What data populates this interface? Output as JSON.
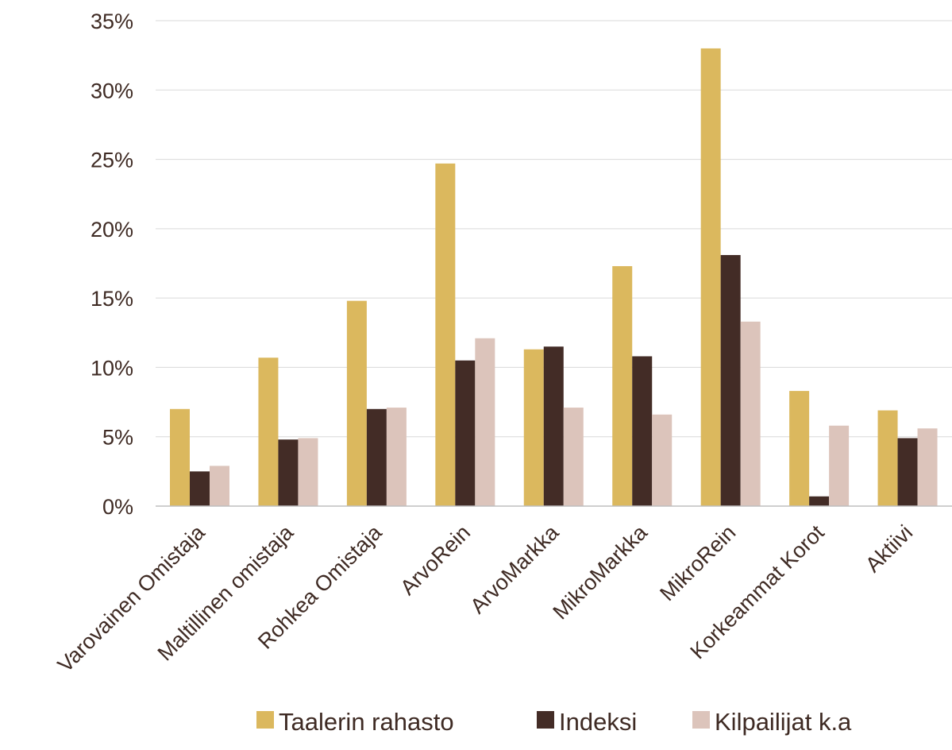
{
  "chart_data": {
    "type": "bar",
    "categories": [
      "Varovainen Omistaja",
      "Maltillinen omistaja",
      "Rohkea Omistaja",
      "ArvoRein",
      "ArvoMarkka",
      "MikroMarkka",
      "MikroRein",
      "Korkeammat Korot",
      "Aktiivi"
    ],
    "series": [
      {
        "name": "Taalerin rahasto",
        "color": "#dbb85e",
        "values": [
          7.0,
          10.7,
          14.8,
          24.7,
          11.3,
          17.3,
          33.0,
          8.3,
          6.9
        ]
      },
      {
        "name": "Indeksi",
        "color": "#432c26",
        "values": [
          2.5,
          4.8,
          7.0,
          10.5,
          11.5,
          10.8,
          18.1,
          0.7,
          4.9
        ]
      },
      {
        "name": "Kilpailijat k.a",
        "color": "#dcc4bb",
        "values": [
          2.9,
          4.9,
          7.1,
          12.1,
          7.1,
          6.6,
          13.3,
          5.8,
          5.6
        ]
      }
    ],
    "yticks": [
      "0%",
      "5%",
      "10%",
      "15%",
      "20%",
      "25%",
      "30%",
      "35%"
    ],
    "ylim": [
      0,
      35
    ],
    "grid": true,
    "legend_position": "bottom"
  }
}
